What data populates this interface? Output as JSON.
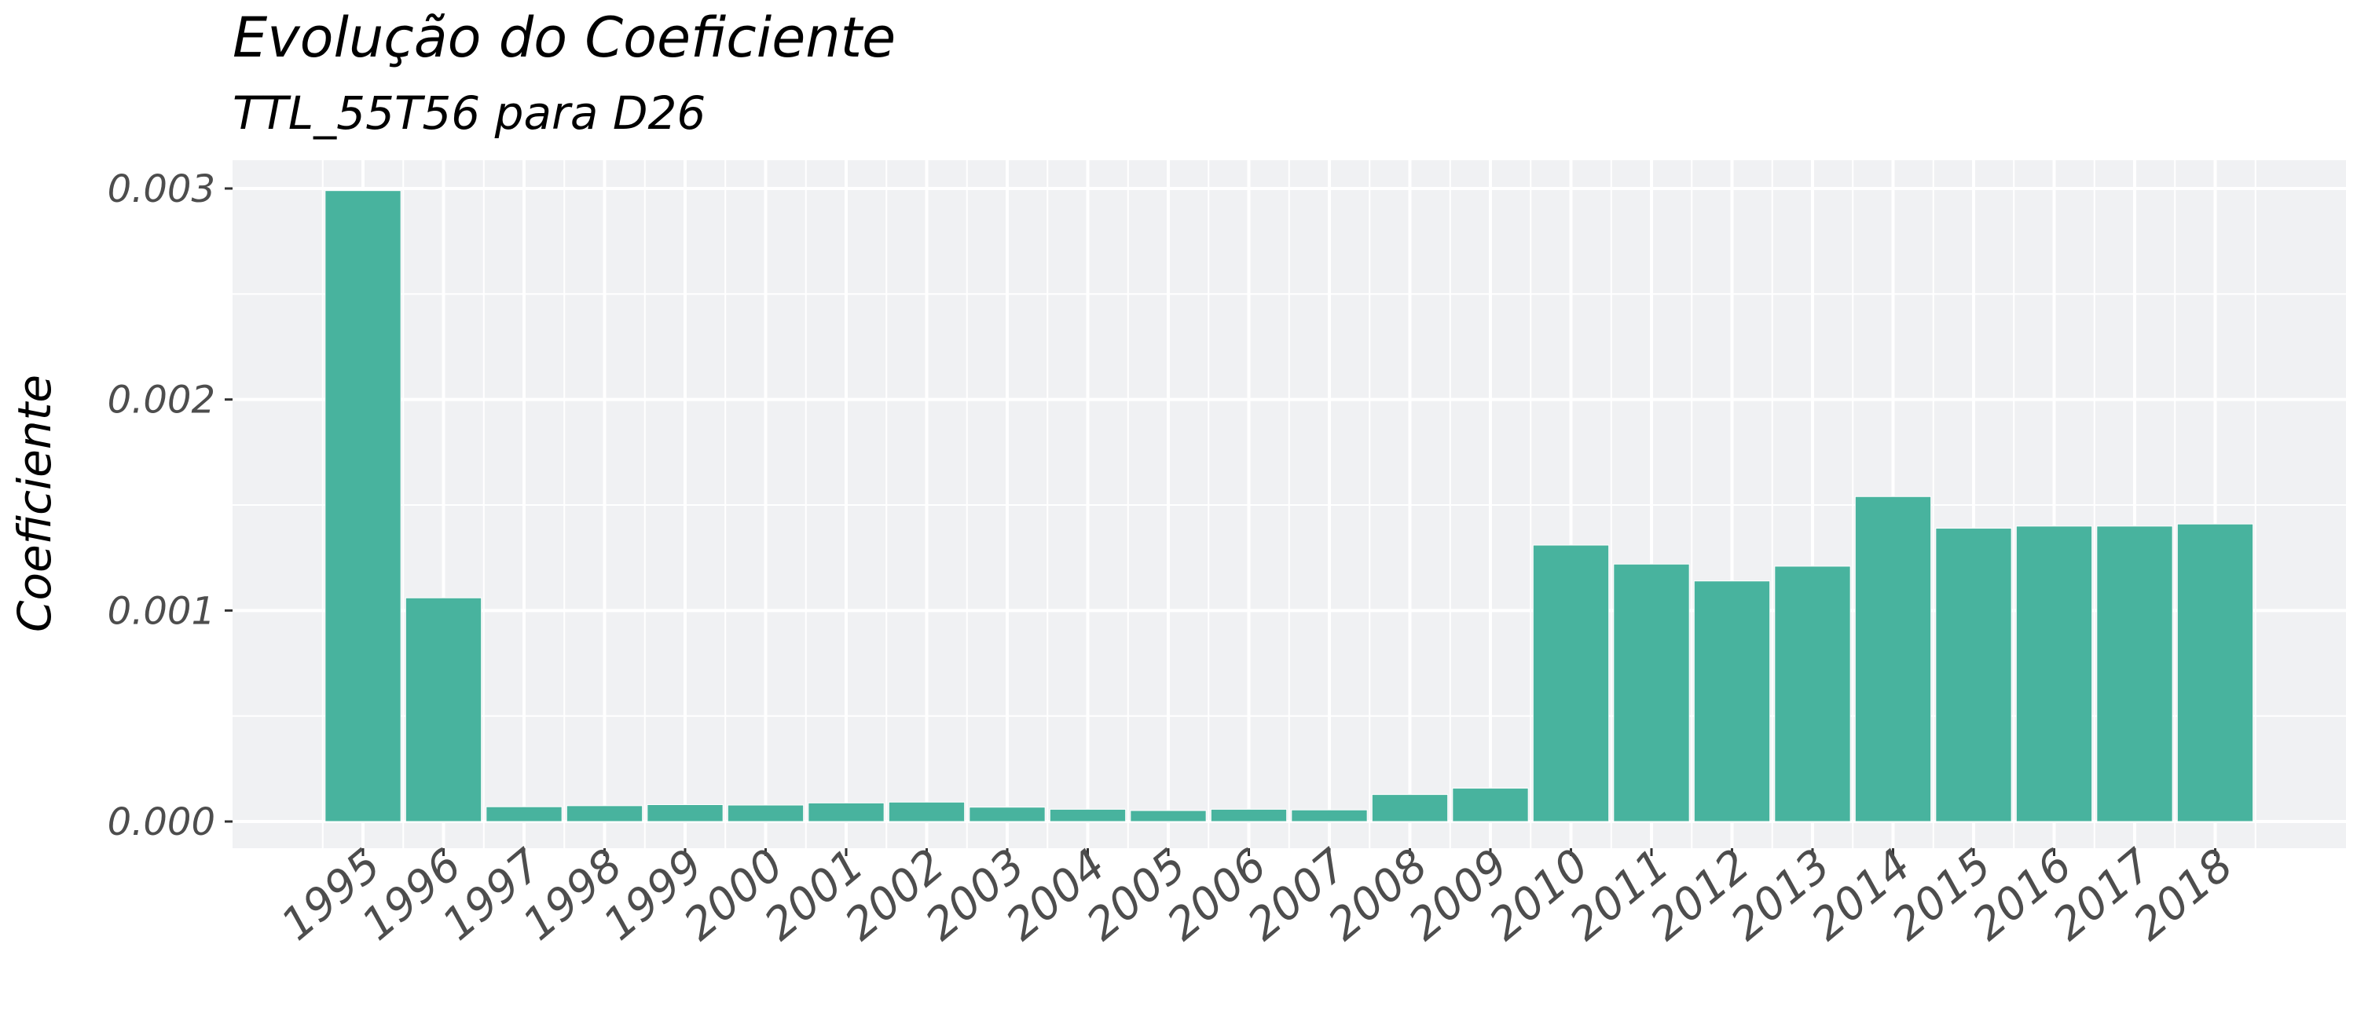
{
  "chart_data": {
    "type": "bar",
    "title": "Evolução do Coeficiente",
    "subtitle": "TTL_55T56 para D26",
    "xlabel": "",
    "ylabel": "Coeficiente",
    "categories": [
      "1995",
      "1996",
      "1997",
      "1998",
      "1999",
      "2000",
      "2001",
      "2002",
      "2003",
      "2004",
      "2005",
      "2006",
      "2007",
      "2008",
      "2009",
      "2010",
      "2011",
      "2012",
      "2013",
      "2014",
      "2015",
      "2016",
      "2017",
      "2018"
    ],
    "values": [
      0.00299,
      0.00106,
      7e-05,
      7.5e-05,
      8e-05,
      7.8e-05,
      8.8e-05,
      9.2e-05,
      6.8e-05,
      5.8e-05,
      5.2e-05,
      5.8e-05,
      5.5e-05,
      0.000128,
      0.000158,
      0.00131,
      0.00122,
      0.00114,
      0.00121,
      0.00154,
      0.00139,
      0.0014,
      0.0014,
      0.00141
    ],
    "ylim": [
      0,
      0.003
    ],
    "yticks": [
      0,
      0.001,
      0.002,
      0.003
    ],
    "ytick_labels": [
      "0.000",
      "0.001",
      "0.002",
      "0.003"
    ],
    "grid": true,
    "legend": "none",
    "colors": {
      "bar": "#48b39e",
      "panel_background": "#f0f1f3",
      "grid": "#ffffff",
      "axis_text": "#4d4d4d",
      "title": "#000000"
    }
  }
}
